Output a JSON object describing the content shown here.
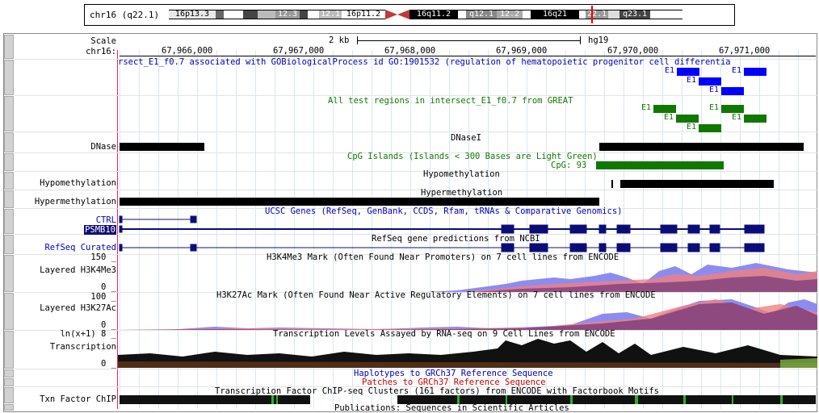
{
  "ideogram": {
    "position_label": "chr16 (q22.1)",
    "bands": [
      "16p13.3",
      "12.3",
      "12.1",
      "16p11.2",
      "16q11.2",
      "q12.1",
      "12.2",
      "16q21",
      "22.1",
      "q23.1"
    ]
  },
  "ruler": {
    "scale_label": "Scale",
    "chrom_label": "chr16:",
    "scale_bar": "2 kb",
    "assembly": "hg19",
    "ticks": [
      "67,966,000",
      "67,967,000",
      "67,968,000",
      "67,969,000",
      "67,970,000",
      "67,971,000"
    ]
  },
  "tracks": {
    "great_title": "rsect_E1_f0.7 associated with GOBiologicalProcess id GO:1901532 (regulation of hematopoietic progenitor cell differentia",
    "great_item": "E1",
    "all_test_title": "All test regions in intersect_E1_f0.7 from GREAT",
    "dnase_center": "DNaseI",
    "dnase_label": "DNase",
    "cpg_title": "CpG Islands (Islands < 300 Bases are Light Green)",
    "cpg_item": "CpG: 93",
    "hypo_center": "Hypomethylation",
    "hypo_label": "Hypomethylation",
    "hyper_center": "Hypermethylation",
    "hyper_label": "Hypermethylation",
    "ucsc_title": "UCSC Genes (RefSeq, GenBank, CCDS, Rfam, tRNAs & Comparative Genomics)",
    "ctrl_label": "CTRL",
    "psmb10_label": "PSMB10",
    "refseq_title": "RefSeq gene predictions from NCBI",
    "refseq_label": "RefSeq Curated",
    "h3k4_max": "150 _",
    "h3k4_title": "H3K4Me3 Mark (Often Found Near Promoters) on 7 cell lines from ENCODE",
    "h3k4_label": "Layered H3K4Me3",
    "h3k4_min": "0 _",
    "h3k27_max": "100 _",
    "h3k27_title": "H3K27Ac Mark (Often Found Near Active Regulatory Elements) on 7 cell lines from ENCODE",
    "h3k27_label": "Layered H3K27Ac",
    "h3k27_min": "0 _",
    "tx_max": "ln(x+1) 8 _",
    "tx_title": "Transcription Levels Assayed by RNA-seq on 9 Cell Lines from ENCODE",
    "tx_label": "Transcription",
    "tx_min": "0 _",
    "hap_title": "Haplotypes to GRCh37 Reference Sequence",
    "patch_title": "Patches to GRCh37 Reference Sequence",
    "tf_title": "Transcription Factor ChIP-seq Clusters (161 factors) from ENCODE with Factorbook Motifs",
    "tf_label": "Txn Factor ChIP",
    "pub_title": "Publications: Sequences in Scientific Articles"
  },
  "colors": {
    "great_blue": "#0000ff",
    "test_green": "#117700",
    "gene_navy": "#0c0c78",
    "cpg_green": "#117700",
    "hap_blue": "#0000bb",
    "patch_red": "#cc0000"
  }
}
